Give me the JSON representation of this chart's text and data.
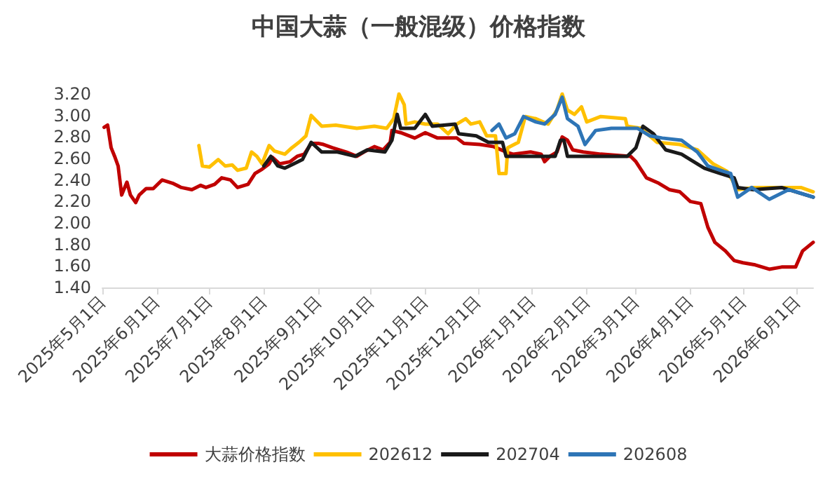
{
  "chart_data": {
    "type": "line",
    "title": "中国大蒜（一般混级）价格指数",
    "xlim": [
      "2025-05-01",
      "2026-06-10"
    ],
    "xticks": [
      {
        "value": "2025-05-01",
        "label": "2025年5月1日"
      },
      {
        "value": "2025-06-01",
        "label": "2025年6月1日"
      },
      {
        "value": "2025-07-01",
        "label": "2025年7月1日"
      },
      {
        "value": "2025-08-01",
        "label": "2025年8月1日"
      },
      {
        "value": "2025-09-01",
        "label": "2025年9月1日"
      },
      {
        "value": "2025-10-01",
        "label": "2025年10月1日"
      },
      {
        "value": "2025-11-01",
        "label": "2025年11月1日"
      },
      {
        "value": "2025-12-01",
        "label": "2025年12月1日"
      },
      {
        "value": "2026-01-01",
        "label": "2026年1月1日"
      },
      {
        "value": "2026-02-01",
        "label": "2026年2月1日"
      },
      {
        "value": "2026-03-01",
        "label": "2026年3月1日"
      },
      {
        "value": "2026-04-01",
        "label": "2026年4月1日"
      },
      {
        "value": "2026-05-01",
        "label": "2026年5月1日"
      },
      {
        "value": "2026-06-01",
        "label": "2026年6月1日"
      }
    ],
    "ylim": [
      1.4,
      3.2
    ],
    "yticks": [
      {
        "value": 1.4,
        "label": "1.40"
      },
      {
        "value": 1.6,
        "label": "1.60"
      },
      {
        "value": 1.8,
        "label": "1.80"
      },
      {
        "value": 2.0,
        "label": "2.00"
      },
      {
        "value": 2.2,
        "label": "2.20"
      },
      {
        "value": 2.4,
        "label": "2.40"
      },
      {
        "value": 2.6,
        "label": "2.60"
      },
      {
        "value": 2.8,
        "label": "2.80"
      },
      {
        "value": 3.0,
        "label": "3.00"
      },
      {
        "value": 3.2,
        "label": "3.20"
      }
    ],
    "grid": false,
    "legend": "bottom",
    "marker": "none",
    "line_style": "solid",
    "series": [
      {
        "name": "大蒜价格指数",
        "color": "#c00000",
        "x": [
          "2025-05-02",
          "2025-05-04",
          "2025-05-06",
          "2025-05-08",
          "2025-05-10",
          "2025-05-12",
          "2025-05-15",
          "2025-05-17",
          "2025-05-20",
          "2025-05-22",
          "2025-05-26",
          "2025-05-30",
          "2025-06-04",
          "2025-06-10",
          "2025-06-15",
          "2025-06-21",
          "2025-06-26",
          "2025-06-29",
          "2025-07-04",
          "2025-07-08",
          "2025-07-13",
          "2025-07-17",
          "2025-07-23",
          "2025-07-27",
          "2025-07-31",
          "2025-08-04",
          "2025-08-06",
          "2025-08-10",
          "2025-08-16",
          "2025-08-20",
          "2025-08-24",
          "2025-08-28",
          "2025-09-01",
          "2025-09-04",
          "2025-09-09",
          "2025-09-17",
          "2025-09-23",
          "2025-09-27",
          "2025-10-03",
          "2025-10-08",
          "2025-10-12",
          "2025-10-13",
          "2025-10-18",
          "2025-10-26",
          "2025-11-01",
          "2025-11-08",
          "2025-11-19",
          "2025-11-23",
          "2025-12-02",
          "2025-12-10",
          "2025-12-17",
          "2025-12-21",
          "2025-12-31",
          "2026-01-06",
          "2026-01-08",
          "2026-01-11",
          "2026-01-15",
          "2026-01-18",
          "2026-01-21",
          "2026-01-24",
          "2026-01-30",
          "2026-02-09",
          "2026-02-26",
          "2026-03-01",
          "2026-03-07",
          "2026-03-14",
          "2026-03-20",
          "2026-03-26",
          "2026-04-01",
          "2026-04-07",
          "2026-04-11",
          "2026-04-15",
          "2026-04-21",
          "2026-04-26",
          "2026-05-01",
          "2026-05-08",
          "2026-05-16",
          "2026-05-23",
          "2026-05-31",
          "2026-06-04",
          "2026-06-10"
        ],
        "values": [
          2.89,
          2.91,
          2.7,
          2.62,
          2.53,
          2.26,
          2.38,
          2.26,
          2.19,
          2.26,
          2.32,
          2.32,
          2.4,
          2.37,
          2.33,
          2.31,
          2.35,
          2.33,
          2.36,
          2.42,
          2.4,
          2.33,
          2.36,
          2.46,
          2.5,
          2.55,
          2.61,
          2.55,
          2.57,
          2.62,
          2.64,
          2.74,
          2.74,
          2.73,
          2.7,
          2.66,
          2.62,
          2.66,
          2.71,
          2.68,
          2.75,
          2.86,
          2.84,
          2.79,
          2.84,
          2.79,
          2.79,
          2.74,
          2.73,
          2.71,
          2.66,
          2.64,
          2.66,
          2.64,
          2.57,
          2.62,
          2.66,
          2.8,
          2.77,
          2.68,
          2.66,
          2.64,
          2.62,
          2.57,
          2.42,
          2.37,
          2.31,
          2.29,
          2.2,
          2.18,
          1.96,
          1.82,
          1.74,
          1.65,
          1.63,
          1.61,
          1.57,
          1.59,
          1.59,
          1.74,
          1.82
        ]
      },
      {
        "name": "202612",
        "color": "#ffc000",
        "x": [
          "2025-06-25",
          "2025-06-27",
          "2025-07-01",
          "2025-07-06",
          "2025-07-10",
          "2025-07-14",
          "2025-07-17",
          "2025-07-22",
          "2025-07-25",
          "2025-07-28",
          "2025-07-31",
          "2025-08-04",
          "2025-08-07",
          "2025-08-13",
          "2025-08-17",
          "2025-08-21",
          "2025-08-25",
          "2025-08-28",
          "2025-09-03",
          "2025-09-11",
          "2025-09-23",
          "2025-10-03",
          "2025-10-10",
          "2025-10-14",
          "2025-10-17",
          "2025-10-20",
          "2025-10-21",
          "2025-10-26",
          "2025-11-01",
          "2025-11-08",
          "2025-11-14",
          "2025-11-19",
          "2025-11-24",
          "2025-11-27",
          "2025-12-02",
          "2025-12-06",
          "2025-12-11",
          "2025-12-13",
          "2025-12-17",
          "2025-12-18",
          "2025-12-24",
          "2025-12-28",
          "2026-01-03",
          "2026-01-10",
          "2026-01-15",
          "2026-01-18",
          "2026-01-21",
          "2026-01-25",
          "2026-01-29",
          "2026-02-01",
          "2026-02-09",
          "2026-02-23",
          "2026-02-24",
          "2026-03-04",
          "2026-03-13",
          "2026-03-26",
          "2026-04-05",
          "2026-04-14",
          "2026-04-22",
          "2026-04-28",
          "2026-05-07",
          "2026-05-23",
          "2026-06-03",
          "2026-06-10"
        ],
        "values": [
          2.72,
          2.53,
          2.52,
          2.59,
          2.53,
          2.54,
          2.49,
          2.51,
          2.66,
          2.62,
          2.55,
          2.72,
          2.67,
          2.64,
          2.7,
          2.75,
          2.81,
          3.0,
          2.9,
          2.91,
          2.88,
          2.9,
          2.88,
          2.97,
          3.2,
          3.1,
          2.92,
          2.94,
          2.92,
          2.92,
          2.83,
          2.92,
          2.97,
          2.92,
          2.94,
          2.81,
          2.81,
          2.46,
          2.46,
          2.7,
          2.75,
          2.99,
          2.97,
          2.92,
          3.05,
          3.2,
          3.05,
          3.01,
          3.08,
          2.94,
          2.99,
          2.97,
          2.9,
          2.88,
          2.75,
          2.73,
          2.68,
          2.55,
          2.48,
          2.31,
          2.33,
          2.33,
          2.33,
          2.29
        ]
      },
      {
        "name": "202704",
        "color": "#1a1a1a",
        "x": [
          "2025-08-01",
          "2025-08-05",
          "2025-08-09",
          "2025-08-13",
          "2025-08-18",
          "2025-08-23",
          "2025-08-28",
          "2025-09-03",
          "2025-09-12",
          "2025-09-22",
          "2025-09-29",
          "2025-10-09",
          "2025-10-13",
          "2025-10-16",
          "2025-10-18",
          "2025-10-26",
          "2025-11-01",
          "2025-11-05",
          "2025-11-18",
          "2025-11-20",
          "2025-11-30",
          "2025-12-07",
          "2025-12-15",
          "2025-12-17",
          "2026-01-14",
          "2026-01-17",
          "2026-01-19",
          "2026-01-21",
          "2026-02-24",
          "2026-03-01",
          "2026-03-05",
          "2026-03-11",
          "2026-03-18",
          "2026-03-27",
          "2026-04-01",
          "2026-04-09",
          "2026-04-18",
          "2026-04-26",
          "2026-04-28",
          "2026-05-07",
          "2026-05-23",
          "2026-06-10"
        ],
        "values": [
          2.53,
          2.62,
          2.53,
          2.51,
          2.55,
          2.59,
          2.75,
          2.66,
          2.66,
          2.62,
          2.68,
          2.66,
          2.77,
          3.01,
          2.88,
          2.88,
          3.01,
          2.9,
          2.92,
          2.83,
          2.81,
          2.75,
          2.75,
          2.62,
          2.62,
          2.77,
          2.77,
          2.62,
          2.62,
          2.7,
          2.9,
          2.83,
          2.68,
          2.64,
          2.59,
          2.51,
          2.46,
          2.42,
          2.33,
          2.31,
          2.33,
          2.24
        ]
      },
      {
        "name": "202608",
        "color": "#2e75b6",
        "x": [
          "2025-12-09",
          "2025-12-13",
          "2025-12-17",
          "2025-12-22",
          "2025-12-27",
          "2026-01-03",
          "2026-01-08",
          "2026-01-14",
          "2026-01-18",
          "2026-01-21",
          "2026-01-27",
          "2026-01-31",
          "2026-02-06",
          "2026-02-15",
          "2026-03-02",
          "2026-03-09",
          "2026-03-16",
          "2026-03-27",
          "2026-04-05",
          "2026-04-11",
          "2026-04-20",
          "2026-04-24",
          "2026-04-28",
          "2026-05-06",
          "2026-05-16",
          "2026-05-27",
          "2026-06-10"
        ],
        "values": [
          2.86,
          2.92,
          2.79,
          2.83,
          2.99,
          2.94,
          2.92,
          3.01,
          3.17,
          2.97,
          2.9,
          2.73,
          2.86,
          2.88,
          2.88,
          2.81,
          2.79,
          2.77,
          2.66,
          2.53,
          2.48,
          2.46,
          2.24,
          2.33,
          2.22,
          2.31,
          2.24
        ]
      }
    ]
  }
}
